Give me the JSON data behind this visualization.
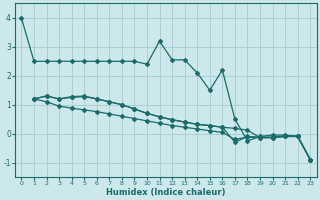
{
  "xlabel": "Humidex (Indice chaleur)",
  "bg_color": "#cce8ea",
  "grid_color": "#aacfd4",
  "line_color": "#1a6b6b",
  "xlim": [
    -0.5,
    23.5
  ],
  "ylim": [
    -1.5,
    4.5
  ],
  "yticks": [
    -1,
    0,
    1,
    2,
    3,
    4
  ],
  "xticks": [
    0,
    1,
    2,
    3,
    4,
    5,
    6,
    7,
    8,
    9,
    10,
    11,
    12,
    13,
    14,
    15,
    16,
    17,
    18,
    19,
    20,
    21,
    22,
    23
  ],
  "series1_x": [
    0,
    1,
    2,
    3,
    4,
    5,
    6,
    7,
    8,
    9,
    10,
    11,
    12,
    13,
    14,
    15,
    16,
    17,
    18,
    19,
    20,
    21,
    22,
    23
  ],
  "series1_y": [
    4.0,
    2.5,
    2.5,
    2.5,
    2.5,
    2.5,
    2.5,
    2.5,
    2.5,
    2.5,
    2.4,
    3.2,
    2.55,
    2.55,
    2.1,
    1.5,
    2.2,
    0.5,
    -0.25,
    -0.1,
    -0.05,
    -0.05,
    -0.1,
    -0.9
  ],
  "series2_x": [
    1,
    2,
    3,
    4,
    5,
    6,
    7,
    8,
    9,
    10,
    11,
    12,
    13,
    14,
    15,
    16,
    17,
    18,
    19,
    20,
    21,
    22,
    23
  ],
  "series2_y": [
    1.2,
    1.3,
    1.2,
    1.25,
    1.28,
    1.2,
    1.1,
    1.0,
    0.85,
    0.7,
    0.58,
    0.48,
    0.4,
    0.32,
    0.28,
    0.22,
    -0.3,
    -0.1,
    -0.12,
    -0.12,
    -0.08,
    -0.08,
    -0.9
  ],
  "series3_x": [
    1,
    2,
    3,
    4,
    5,
    6,
    7,
    8,
    9,
    10,
    11,
    12,
    13,
    14,
    15,
    16,
    17,
    18,
    19,
    20,
    21,
    22,
    23
  ],
  "series3_y": [
    1.2,
    1.1,
    0.95,
    0.88,
    0.82,
    0.76,
    0.68,
    0.6,
    0.52,
    0.44,
    0.36,
    0.28,
    0.22,
    0.16,
    0.1,
    0.04,
    -0.2,
    -0.12,
    -0.14,
    -0.14,
    -0.1,
    -0.1,
    -0.9
  ],
  "series4_x": [
    1,
    2,
    3,
    4,
    5,
    6,
    7,
    8,
    9,
    10,
    11,
    12,
    13,
    14,
    15,
    16,
    17,
    18,
    19,
    20,
    21,
    22,
    23
  ],
  "series4_y": [
    1.2,
    1.3,
    1.2,
    1.28,
    1.3,
    1.2,
    1.1,
    1.0,
    0.85,
    0.7,
    0.58,
    0.48,
    0.4,
    0.32,
    0.28,
    0.22,
    0.18,
    0.12,
    -0.14,
    -0.14,
    -0.1,
    -0.1,
    -0.9
  ]
}
